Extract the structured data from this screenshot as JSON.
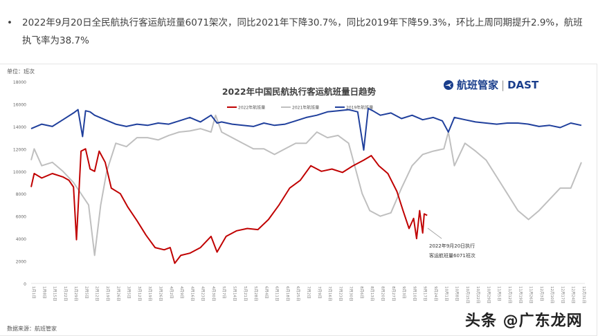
{
  "summary": {
    "bullet": "•",
    "text": "2022年9月20日全民航执行客运航班量6071架次，同比2021年下降30.7%，同比2019年下降59.3%，环比上周同期提升2.9%，航班执飞率为38.7%"
  },
  "unit_label": "单位：班次",
  "source_label": "数据来源：航班管家",
  "logo": {
    "name": "航班管家",
    "brand": "DAST",
    "separator": "|",
    "color": "#1a3e8c"
  },
  "watermark": "头条 @广东龙网",
  "chart_data": {
    "type": "line",
    "title": "2022年中国民航执行客运航班量日趋势",
    "ylim": [
      0,
      18000
    ],
    "yticks": [
      "0",
      "2000",
      "4000",
      "6000",
      "8000",
      "10000",
      "12000",
      "14000",
      "16000",
      "18000"
    ],
    "xticks": [
      "1月1日",
      "1月8日",
      "1月15日",
      "1月22日",
      "1月29日",
      "2月5日",
      "2月12日",
      "2月19日",
      "2月26日",
      "3月5日",
      "3月12日",
      "3月19日",
      "3月26日",
      "4月2日",
      "4月9日",
      "4月16日",
      "4月23日",
      "4月30日",
      "5月7日",
      "5月14日",
      "5月21日",
      "5月28日",
      "6月4日",
      "6月11日",
      "6月18日",
      "6月25日",
      "7月2日",
      "7月9日",
      "7月16日",
      "7月23日",
      "7月30日",
      "8月6日",
      "8月13日",
      "8月20日",
      "8月27日",
      "9月3日",
      "9月10日",
      "9月17日",
      "9月24日",
      "10月1日",
      "10月8日",
      "10月15日",
      "10月22日",
      "10月29日",
      "11月5日",
      "11月12日",
      "11月19日",
      "11月26日",
      "12月3日",
      "12月10日",
      "12月17日",
      "12月24日",
      "12月31日"
    ],
    "grid": false,
    "legend": "top-center",
    "annotation": {
      "lines": [
        "2022年9月20日执行",
        "客运航班量6071班次"
      ],
      "date": "9月20日",
      "value": 6071
    },
    "series": [
      {
        "name": "2022年航班量",
        "color": "#c00000",
        "dates": [
          "1月1日",
          "1月3日",
          "1月8日",
          "1月15日",
          "1月22日",
          "1月26日",
          "1月29日",
          "1月31日",
          "2月3日",
          "2月6日",
          "2月9日",
          "2月12日",
          "2月15日",
          "2月19日",
          "2月23日",
          "3月1日",
          "3月6日",
          "3月12日",
          "3月18日",
          "3月24日",
          "3月30日",
          "4月3日",
          "4月6日",
          "4月10日",
          "4月16日",
          "4月23日",
          "4月30日",
          "5月4日",
          "5月10日",
          "5月17日",
          "5月24日",
          "5月31日",
          "6月7日",
          "6月14日",
          "6月21日",
          "6月28日",
          "7月5日",
          "7月12日",
          "7月19日",
          "7月26日",
          "8月2日",
          "8月9日",
          "8月14日",
          "8月19日",
          "8月25日",
          "8月31日",
          "9月4日",
          "9月8日",
          "9月11日",
          "9月13日",
          "9月15日",
          "9月17日",
          "9月18日",
          "9月20日"
        ],
        "values": [
          8600,
          9800,
          9400,
          9800,
          9500,
          9200,
          8600,
          3900,
          11800,
          12000,
          10200,
          10000,
          11800,
          10800,
          8500,
          8000,
          6800,
          5600,
          4300,
          3200,
          3000,
          3200,
          1800,
          2500,
          2700,
          3200,
          4200,
          2800,
          4200,
          4700,
          4900,
          4800,
          5700,
          7000,
          8500,
          9200,
          10500,
          10000,
          10200,
          9900,
          10500,
          11000,
          11400,
          10500,
          9800,
          8200,
          6500,
          4900,
          5800,
          4000,
          6500,
          4500,
          6200,
          6071
        ]
      },
      {
        "name": "2021年航班量",
        "color": "#bfbfbf",
        "dates": [
          "1月1日",
          "1月3日",
          "1月8日",
          "1月15日",
          "1月22日",
          "1月29日",
          "2月3日",
          "2月8日",
          "2月12日",
          "2月16日",
          "2月20日",
          "2月26日",
          "3月5日",
          "3月12日",
          "3月19日",
          "3月26日",
          "4月2日",
          "4月9日",
          "4月16日",
          "4月23日",
          "4月30日",
          "5月3日",
          "5月7日",
          "5月14日",
          "5月21日",
          "5月28日",
          "6月4日",
          "6月11日",
          "6月18日",
          "6月25日",
          "7月2日",
          "7月9日",
          "7月16日",
          "7月23日",
          "7月30日",
          "8月4日",
          "8月8日",
          "8月13日",
          "8月20日",
          "8月27日",
          "9月3日",
          "9月10日",
          "9月17日",
          "9月24日",
          "10月1日",
          "10月4日",
          "10月8日",
          "10月15日",
          "10月22日",
          "10月29日",
          "11月5日",
          "11月12日",
          "11月19日",
          "11月26日",
          "12月3日",
          "12月10日",
          "12月17日",
          "12月24日",
          "12月31日"
        ],
        "values": [
          11000,
          12000,
          10500,
          10800,
          10000,
          9000,
          8000,
          7000,
          2500,
          7000,
          10000,
          12500,
          12200,
          13000,
          13000,
          12800,
          13200,
          13500,
          13600,
          13800,
          13500,
          15000,
          13500,
          13000,
          12500,
          12000,
          12000,
          11500,
          12000,
          12500,
          12500,
          13500,
          13000,
          13200,
          12500,
          10000,
          8000,
          6500,
          6000,
          6300,
          8500,
          10500,
          11500,
          11800,
          12000,
          13500,
          10500,
          12500,
          11800,
          11000,
          9500,
          8000,
          6500,
          5700,
          6500,
          7500,
          8500,
          8500,
          10800
        ]
      },
      {
        "name": "2019年航班量",
        "color": "#1f3f9c",
        "dates": [
          "1月1日",
          "1月8日",
          "1月15日",
          "1月22日",
          "1月29日",
          "2月1日",
          "2月4日",
          "2月6日",
          "2月9日",
          "2月12日",
          "2月19日",
          "2月26日",
          "3月5日",
          "3月12日",
          "3月19日",
          "3月26日",
          "4月2日",
          "4月9日",
          "4月16日",
          "4月23日",
          "4月30日",
          "5月4日",
          "5月7日",
          "5月14日",
          "5月21日",
          "5月28日",
          "6月4日",
          "6月11日",
          "6月18日",
          "6月25日",
          "7月2日",
          "7月9日",
          "7月16日",
          "7月23日",
          "7月30日",
          "8月5日",
          "8月9日",
          "8月12日",
          "8月15日",
          "8月20日",
          "8月27日",
          "9月3日",
          "9月10日",
          "9月17日",
          "9月24日",
          "9月30日",
          "10月4日",
          "10月8日",
          "10月15日",
          "10月22日",
          "10月29日",
          "11月5日",
          "11月12日",
          "11月19日",
          "11月26日",
          "12月3日",
          "12月10日",
          "12月17日",
          "12月24日",
          "12月31日"
        ],
        "values": [
          13800,
          14200,
          14000,
          14600,
          15200,
          15500,
          13100,
          15400,
          15300,
          15000,
          14600,
          14200,
          14000,
          14200,
          14100,
          14300,
          14200,
          14500,
          14800,
          14400,
          15000,
          14300,
          14400,
          14200,
          14100,
          14000,
          14300,
          14100,
          14200,
          14500,
          14800,
          15000,
          15300,
          15400,
          15500,
          15300,
          11900,
          15600,
          15400,
          15000,
          15200,
          14700,
          15000,
          14600,
          14800,
          14500,
          13500,
          14800,
          14600,
          14400,
          14300,
          14200,
          14300,
          14300,
          14200,
          14000,
          14100,
          13900,
          14300,
          14100
        ]
      }
    ]
  }
}
